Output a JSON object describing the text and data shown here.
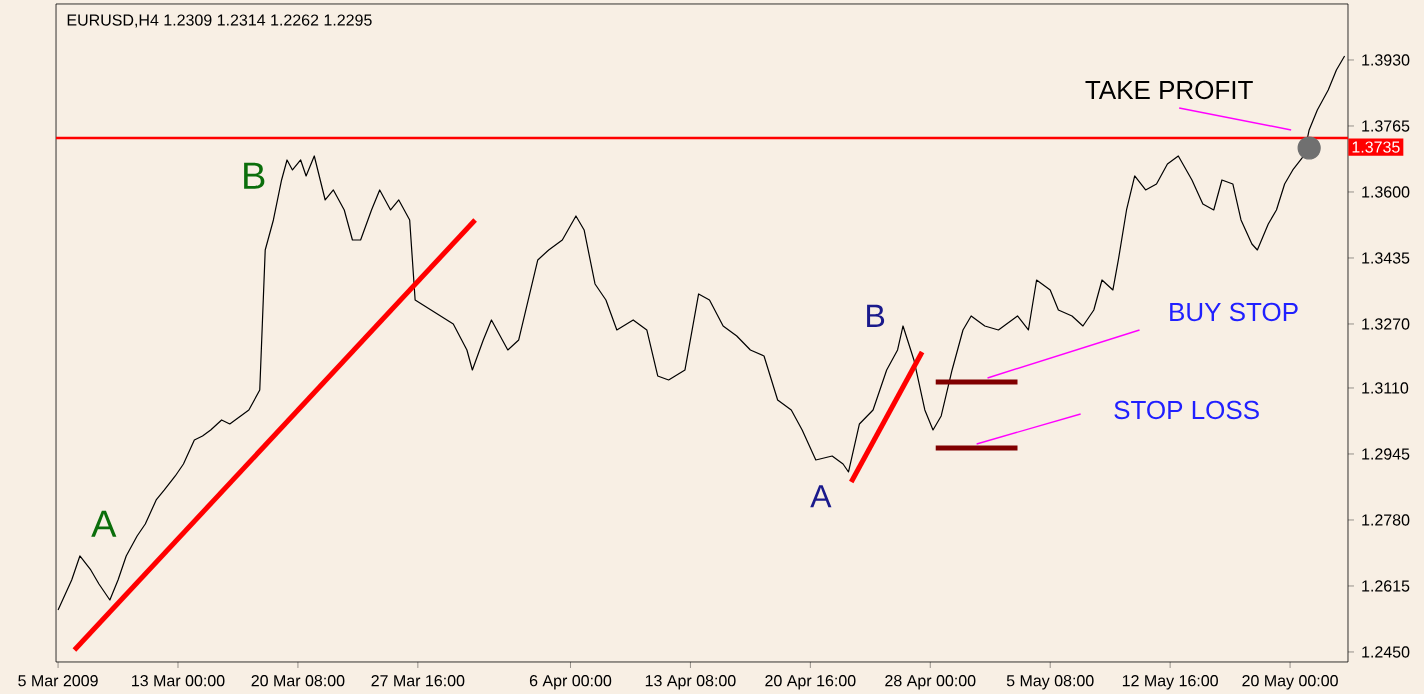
{
  "chart_data": {
    "type": "line",
    "title": "EURUSD,H4  1.2309 1.2314 1.2262 1.2295",
    "xlim": [
      "2009-03-05T13:00",
      "2009-05-23T13:00"
    ],
    "ylim": [
      1.2425,
      1.407
    ],
    "line_style": "solid",
    "marker": "none",
    "xticks": [
      {
        "value": "2009-03-05T16:00",
        "label": "5 Mar 2009"
      },
      {
        "value": "2009-03-13T00:00",
        "label": "13 Mar 00:00"
      },
      {
        "value": "2009-03-20T08:00",
        "label": "20 Mar 08:00"
      },
      {
        "value": "2009-03-27T16:00",
        "label": "27 Mar 16:00"
      },
      {
        "value": "2009-04-06T00:00",
        "label": "6 Apr 00:00"
      },
      {
        "value": "2009-04-13T08:00",
        "label": "13 Apr 08:00"
      },
      {
        "value": "2009-04-20T16:00",
        "label": "20 Apr 16:00"
      },
      {
        "value": "2009-04-28T00:00",
        "label": "28 Apr 00:00"
      },
      {
        "value": "2009-05-05T08:00",
        "label": "5 May 08:00"
      },
      {
        "value": "2009-05-12T16:00",
        "label": "12 May 16:00"
      },
      {
        "value": "2009-05-20T00:00",
        "label": "20 May 00:00"
      }
    ],
    "yticks": [
      {
        "value": 1.245,
        "label": "1.2450"
      },
      1.2615,
      {
        "value": 1.278,
        "label": "1.2780"
      },
      1.2945,
      {
        "value": 1.311,
        "label": "1.3110"
      },
      {
        "value": 1.327,
        "label": "1.3270"
      },
      1.3435,
      {
        "value": 1.36,
        "label": "1.3600"
      },
      1.3765,
      {
        "value": 1.393,
        "label": "1.3930"
      }
    ],
    "series": [
      {
        "color": "#000000",
        "x": [
          "2009-03-05T16:00",
          "2009-03-06T12:00",
          "2009-03-07T00:00",
          "2009-03-07T16:00",
          "2009-03-08T04:00",
          "2009-03-08T20:00",
          "2009-03-09T08:00",
          "2009-03-09T20:00",
          "2009-03-10T12:00",
          "2009-03-11T00:00",
          "2009-03-11T16:00",
          "2009-03-12T04:00",
          "2009-03-12T20:00",
          "2009-03-13T08:00",
          "2009-03-14T00:00",
          "2009-03-14T12:00",
          "2009-03-15T00:00",
          "2009-03-15T16:00",
          "2009-03-16T04:00",
          "2009-03-16T20:00",
          "2009-03-17T08:00",
          "2009-03-18T00:00",
          "2009-03-18T04:00",
          "2009-03-18T08:00",
          "2009-03-18T20:00",
          "2009-03-19T08:00",
          "2009-03-19T16:00",
          "2009-03-20T00:00",
          "2009-03-20T12:00",
          "2009-03-20T20:00",
          "2009-03-21T08:00",
          "2009-03-22T00:00",
          "2009-03-22T12:00",
          "2009-03-23T04:00",
          "2009-03-23T16:00",
          "2009-03-24T04:00",
          "2009-03-24T20:00",
          "2009-03-25T08:00",
          "2009-03-26T00:00",
          "2009-03-26T12:00",
          "2009-03-27T04:00",
          "2009-03-27T12:00",
          "2009-03-29T20:00",
          "2009-03-30T16:00",
          "2009-03-31T00:00",
          "2009-03-31T16:00",
          "2009-04-01T04:00",
          "2009-04-01T20:00",
          "2009-04-02T04:00",
          "2009-04-02T20:00",
          "2009-04-04T00:00",
          "2009-04-04T16:00",
          "2009-04-05T12:00",
          "2009-04-06T08:00",
          "2009-04-06T20:00",
          "2009-04-07T12:00",
          "2009-04-08T04:00",
          "2009-04-08T20:00",
          "2009-04-09T20:00",
          "2009-04-10T16:00",
          "2009-04-11T08:00",
          "2009-04-12T00:00",
          "2009-04-13T00:00",
          "2009-04-13T20:00",
          "2009-04-14T12:00",
          "2009-04-15T08:00",
          "2009-04-16T04:00",
          "2009-04-17T00:00",
          "2009-04-17T20:00",
          "2009-04-18T16:00",
          "2009-04-19T12:00",
          "2009-04-20T04:00",
          "2009-04-21T00:00",
          "2009-04-22T00:00",
          "2009-04-22T16:00",
          "2009-04-23T00:00",
          "2009-04-23T16:00",
          "2009-04-24T12:00",
          "2009-04-25T08:00",
          "2009-04-26T00:00",
          "2009-04-26T08:00",
          "2009-04-27T00:00",
          "2009-04-27T16:00",
          "2009-04-28T04:00",
          "2009-04-28T16:00",
          "2009-04-29T08:00",
          "2009-04-30T00:00",
          "2009-04-30T12:00",
          "2009-05-01T08:00",
          "2009-05-02T04:00",
          "2009-05-03T08:00",
          "2009-05-04T00:00",
          "2009-05-04T12:00",
          "2009-05-05T08:00",
          "2009-05-05T20:00",
          "2009-05-06T16:00",
          "2009-05-07T08:00",
          "2009-05-08T00:00",
          "2009-05-08T12:00",
          "2009-05-09T04:00",
          "2009-05-09T12:00",
          "2009-05-10T00:00",
          "2009-05-10T12:00",
          "2009-05-11T04:00",
          "2009-05-11T20:00",
          "2009-05-12T12:00",
          "2009-05-13T04:00",
          "2009-05-14T00:00",
          "2009-05-14T16:00",
          "2009-05-15T08:00",
          "2009-05-15T20:00",
          "2009-05-16T12:00",
          "2009-05-17T00:00",
          "2009-05-17T16:00",
          "2009-05-18T00:00",
          "2009-05-18T16:00",
          "2009-05-19T04:00",
          "2009-05-19T16:00",
          "2009-05-20T04:00",
          "2009-05-20T20:00",
          "2009-05-21T04:00",
          "2009-05-21T16:00",
          "2009-05-22T08:00",
          "2009-05-22T20:00",
          "2009-05-23T08:00"
        ],
        "values": [
          1.2555,
          1.263,
          1.269,
          1.2655,
          1.262,
          1.258,
          1.263,
          1.269,
          1.274,
          1.277,
          1.283,
          1.2855,
          1.289,
          1.292,
          1.298,
          1.299,
          1.3005,
          1.303,
          1.302,
          1.304,
          1.3055,
          1.3105,
          1.328,
          1.3455,
          1.353,
          1.363,
          1.368,
          1.3655,
          1.368,
          1.364,
          1.369,
          1.358,
          1.3605,
          1.3555,
          1.348,
          1.348,
          1.3555,
          1.3605,
          1.3555,
          1.358,
          1.353,
          1.333,
          1.327,
          1.3205,
          1.3155,
          1.323,
          1.328,
          1.323,
          1.3205,
          1.323,
          1.343,
          1.3455,
          1.348,
          1.354,
          1.3505,
          1.337,
          1.333,
          1.3255,
          1.328,
          1.3255,
          1.314,
          1.313,
          1.3155,
          1.3345,
          1.333,
          1.3265,
          1.324,
          1.3205,
          1.319,
          1.308,
          1.3055,
          1.3005,
          1.293,
          1.294,
          1.292,
          1.29,
          1.302,
          1.3055,
          1.3155,
          1.3205,
          1.3265,
          1.318,
          1.3055,
          1.3005,
          1.304,
          1.3155,
          1.3255,
          1.329,
          1.3265,
          1.3255,
          1.329,
          1.3255,
          1.338,
          1.3355,
          1.3305,
          1.329,
          1.3265,
          1.3305,
          1.338,
          1.3355,
          1.343,
          1.3555,
          1.364,
          1.3605,
          1.362,
          1.367,
          1.369,
          1.363,
          1.357,
          1.3555,
          1.363,
          1.362,
          1.353,
          1.347,
          1.3455,
          1.352,
          1.3555,
          1.362,
          1.3655,
          1.369,
          1.3755,
          1.3805,
          1.3855,
          1.3905,
          1.394
        ]
      },
      {
        "type": "line",
        "color": "#ff0000",
        "x": [
          "2009-03-06T16:00",
          "2009-03-31T04:00"
        ],
        "values": [
          1.2455,
          1.353
        ]
      },
      {
        "type": "line",
        "color": "#ff0000",
        "x": [
          "2009-04-23T04:00",
          "2009-04-27T12:00"
        ],
        "values": [
          1.2875,
          1.32
        ]
      },
      {
        "type": "line",
        "color": "#800000",
        "x": [
          "2009-04-28T08:00",
          "2009-05-03T08:00"
        ],
        "values": [
          1.3125,
          1.3125
        ]
      },
      {
        "type": "line",
        "color": "#800000",
        "x": [
          "2009-04-28T08:00",
          "2009-05-03T08:00"
        ],
        "values": [
          1.296,
          1.296
        ]
      },
      {
        "type": "scatter",
        "marker": "circle",
        "color": "#707070",
        "x": [
          "2009-05-21T04:00"
        ],
        "values": [
          1.371
        ]
      }
    ],
    "ref_lines": [
      {
        "axis": "y",
        "value": 1.3735,
        "label": "1.3735",
        "color": "#ff0000"
      }
    ],
    "annotations": [
      "A",
      "B",
      "B",
      "A",
      {
        "text": "TAKE PROFIT",
        "x": "2009-05-21T04:00",
        "y": 1.371
      },
      {
        "text": "BUY STOP",
        "x": "2009-05-01T12:00",
        "y": 1.3125
      },
      {
        "text": "STOP LOSS",
        "x": "2009-04-30T20:00",
        "y": 1.296
      }
    ]
  }
}
